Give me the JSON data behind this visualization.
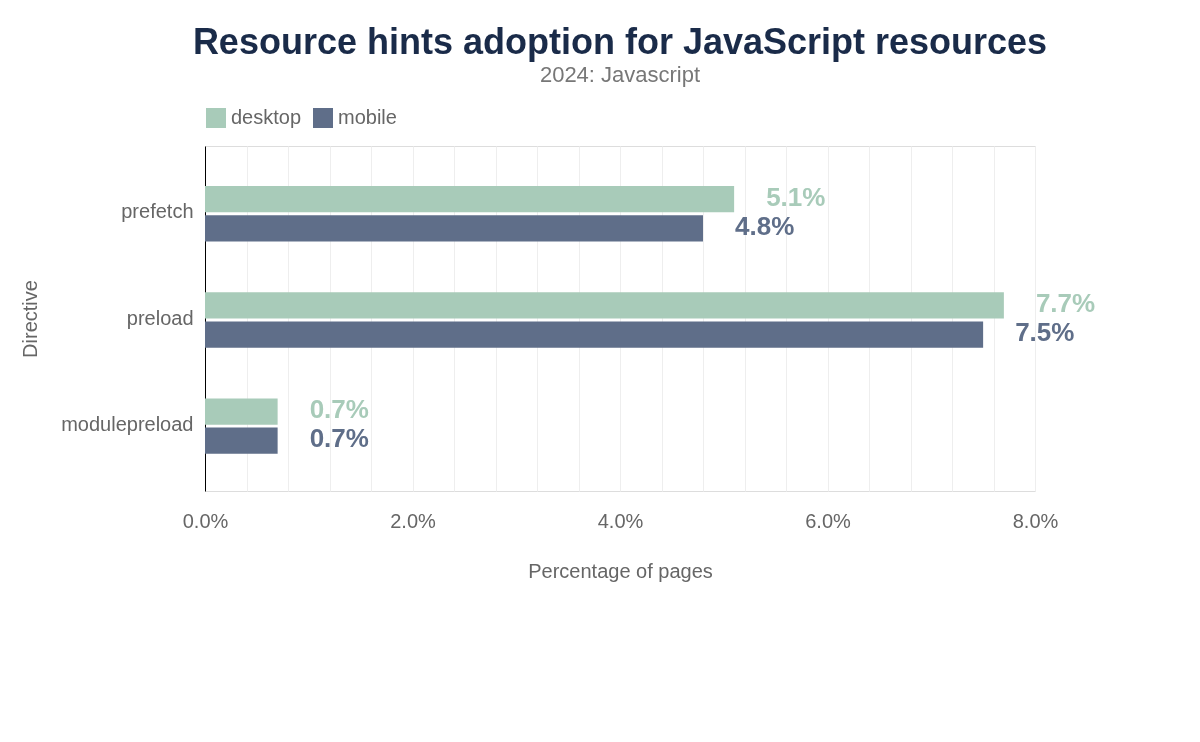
{
  "chart_data": {
    "type": "bar",
    "orientation": "horizontal",
    "title": "Resource hints adoption for JavaScript resources",
    "subtitle": "2024: Javascript",
    "xlabel": "Percentage of pages",
    "ylabel": "Directive",
    "categories": [
      "prefetch",
      "preload",
      "modulepreload"
    ],
    "series": [
      {
        "name": "desktop",
        "color": "#a8cbb9",
        "values": [
          5.1,
          7.7,
          0.7
        ],
        "value_labels": [
          "5.1%",
          "7.7%",
          "0.7%"
        ]
      },
      {
        "name": "mobile",
        "color": "#5f6e89",
        "values": [
          4.8,
          7.5,
          0.7
        ],
        "value_labels": [
          "4.8%",
          "7.5%",
          "0.7%"
        ]
      }
    ],
    "xlim": [
      0,
      8
    ],
    "xticks": [
      {
        "value": 0,
        "label": "0.0%"
      },
      {
        "value": 0.4,
        "label": null
      },
      {
        "value": 0.8,
        "label": null
      },
      {
        "value": 1.2,
        "label": null
      },
      {
        "value": 1.6,
        "label": null
      },
      {
        "value": 2,
        "label": "2.0%"
      },
      {
        "value": 2.4,
        "label": null
      },
      {
        "value": 2.8,
        "label": null
      },
      {
        "value": 3.2,
        "label": null
      },
      {
        "value": 3.6,
        "label": null
      },
      {
        "value": 4,
        "label": "4.0%"
      },
      {
        "value": 4.4,
        "label": null
      },
      {
        "value": 4.8,
        "label": null
      },
      {
        "value": 5.2,
        "label": null
      },
      {
        "value": 5.6,
        "label": null
      },
      {
        "value": 6,
        "label": "6.0%"
      },
      {
        "value": 6.4,
        "label": null
      },
      {
        "value": 6.8,
        "label": null
      },
      {
        "value": 7.2,
        "label": null
      },
      {
        "value": 7.6,
        "label": null
      },
      {
        "value": 8,
        "label": "8.0%"
      }
    ],
    "grid": "x",
    "legend": "top"
  }
}
